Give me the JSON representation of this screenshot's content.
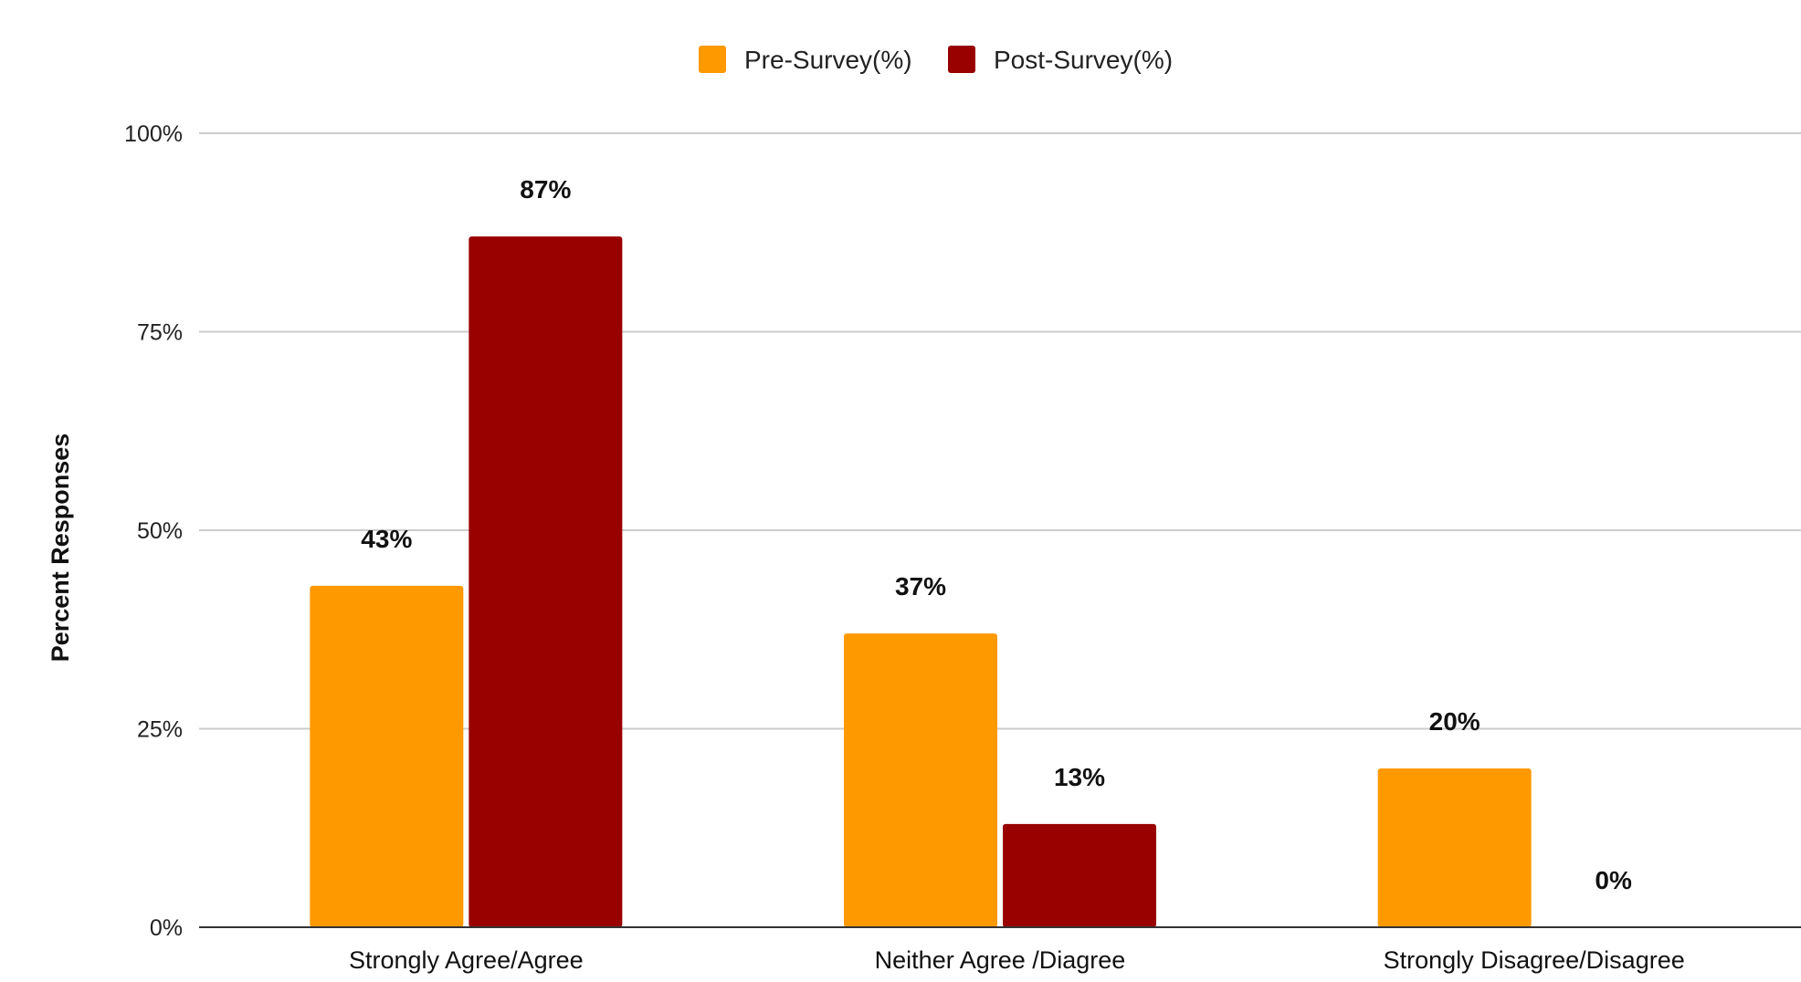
{
  "chart_data": {
    "type": "bar",
    "title": "",
    "xlabel": "",
    "ylabel": "Percent Responses",
    "ylim": [
      0,
      100
    ],
    "yticks": [
      0,
      25,
      50,
      75,
      100
    ],
    "ytick_labels": [
      "0%",
      "25%",
      "50%",
      "75%",
      "100%"
    ],
    "categories": [
      "Strongly Agree/Agree",
      "Neither Agree /Diagree",
      "Strongly Disagree/Disagree"
    ],
    "series": [
      {
        "name": "Pre-Survey(%)",
        "color": "#FF9900",
        "values": [
          43,
          37,
          20
        ],
        "labels": [
          "43%",
          "37%",
          "20%"
        ]
      },
      {
        "name": "Post-Survey(%)",
        "color": "#990000",
        "values": [
          87,
          13,
          0
        ],
        "labels": [
          "87%",
          "13%",
          "0%"
        ]
      }
    ],
    "grid": true,
    "legend_position": "top-center"
  }
}
